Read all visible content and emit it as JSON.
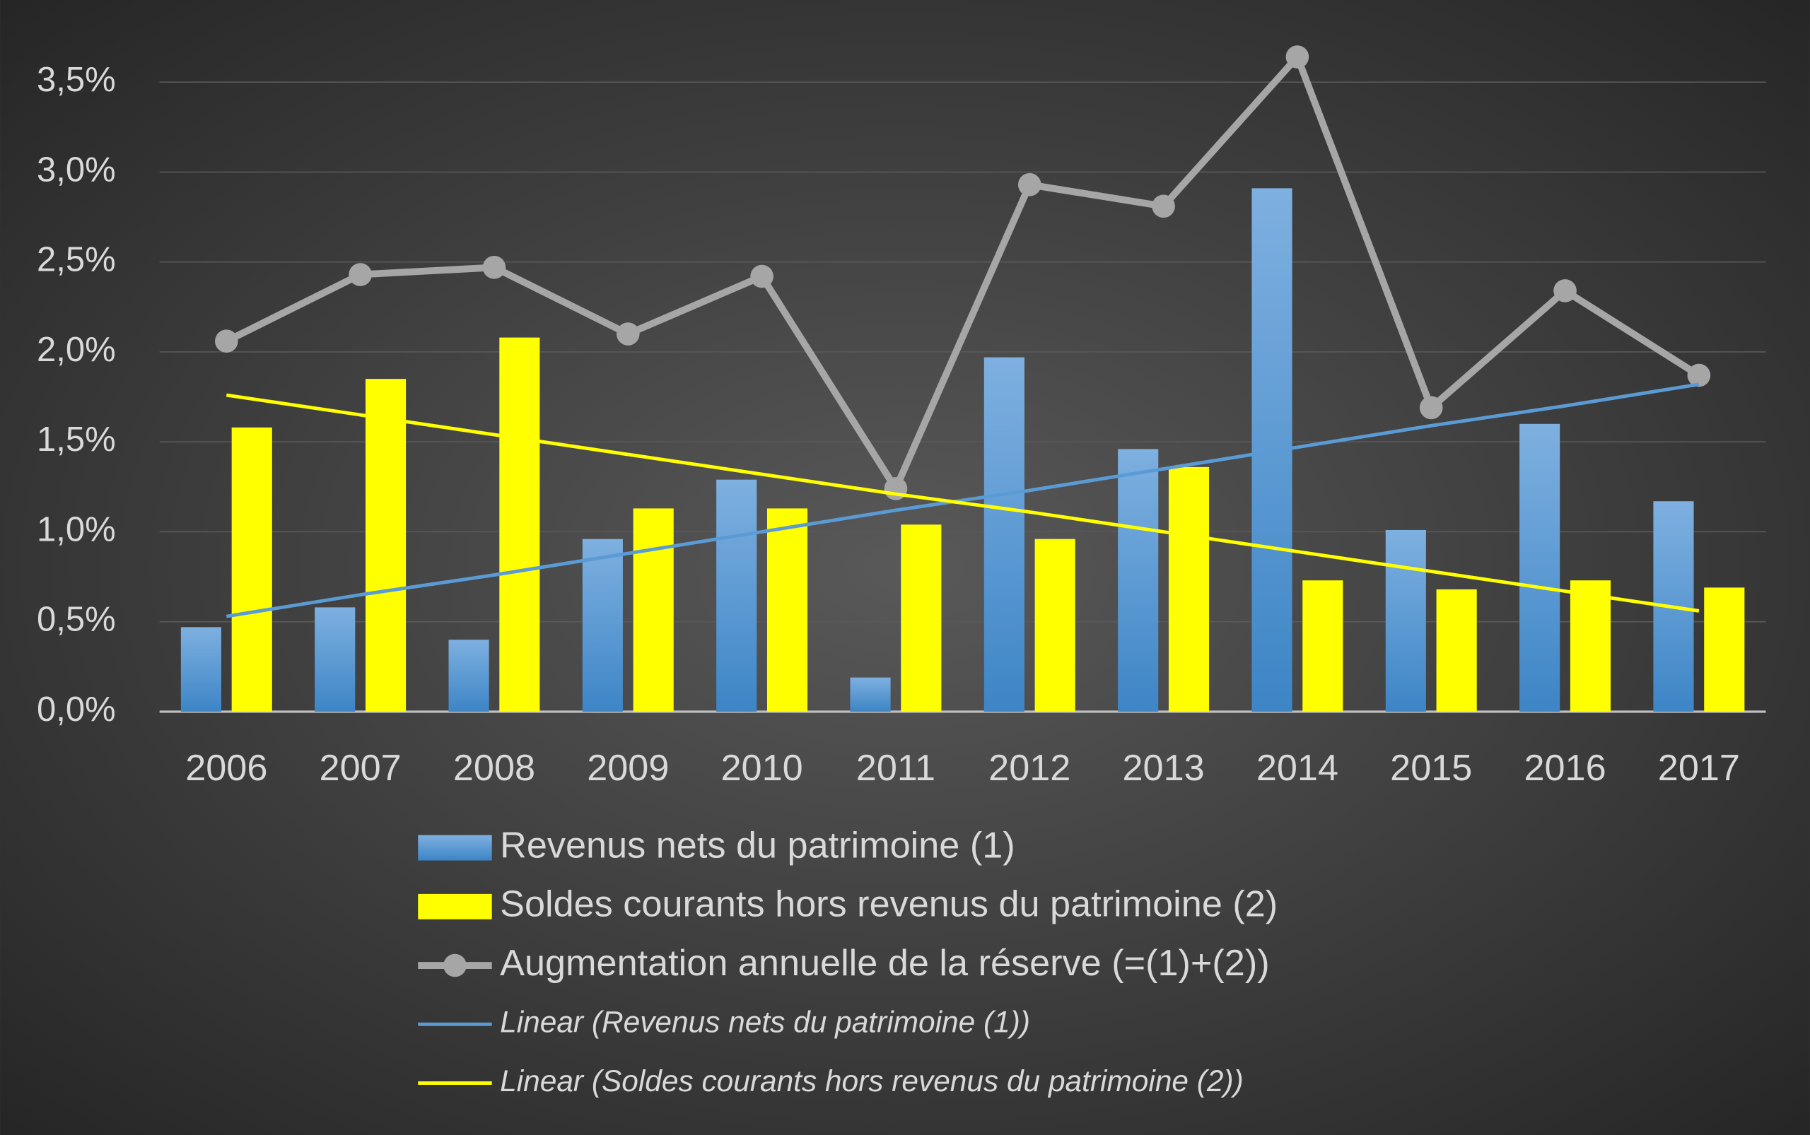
{
  "chart_data": {
    "type": "bar",
    "categories": [
      "2006",
      "2007",
      "2008",
      "2009",
      "2010",
      "2011",
      "2012",
      "2013",
      "2014",
      "2015",
      "2016",
      "2017"
    ],
    "series": [
      {
        "name": "Revenus nets du patrimoine (1)",
        "type": "bar",
        "color": "#5b9bd5",
        "values": [
          0.47,
          0.58,
          0.4,
          0.96,
          1.29,
          0.19,
          1.97,
          1.46,
          2.91,
          1.01,
          1.6,
          1.17
        ]
      },
      {
        "name": "Soldes courants hors revenus du patrimoine (2)",
        "type": "bar",
        "color": "#ffff00",
        "values": [
          1.58,
          1.85,
          2.08,
          1.13,
          1.13,
          1.04,
          0.96,
          1.36,
          0.73,
          0.68,
          0.73,
          0.69
        ]
      },
      {
        "name": "Augmentation annuelle de la réserve (=(1)+(2))",
        "type": "line",
        "color": "#a6a6a6",
        "values": [
          2.06,
          2.43,
          2.47,
          2.1,
          2.42,
          1.24,
          2.93,
          2.81,
          3.64,
          1.69,
          2.34,
          1.87
        ]
      },
      {
        "name": "Linear (Revenus nets du patrimoine (1))",
        "type": "trend",
        "color": "#5b9bd5",
        "values": [
          0.53,
          0.65,
          0.76,
          0.88,
          1.0,
          1.12,
          1.23,
          1.35,
          1.47,
          1.59,
          1.7,
          1.82
        ]
      },
      {
        "name": "Linear (Soldes courants hors revenus du patrimoine (2))",
        "type": "trend",
        "color": "#ffff00",
        "values": [
          1.76,
          1.65,
          1.54,
          1.43,
          1.32,
          1.21,
          1.11,
          1.0,
          0.89,
          0.78,
          0.67,
          0.56
        ]
      }
    ],
    "ylim": [
      0,
      3.7
    ],
    "yticks": [
      {
        "value": 0,
        "label": "0,0%"
      },
      {
        "value": 0.5,
        "label": "0,5%"
      },
      {
        "value": 1,
        "label": "1,0%"
      },
      {
        "value": 1.5,
        "label": "1,5%"
      },
      {
        "value": 2,
        "label": "2,0%"
      },
      {
        "value": 2.5,
        "label": "2,5%"
      },
      {
        "value": 3,
        "label": "3,0%"
      },
      {
        "value": 3.5,
        "label": "3,5%"
      }
    ],
    "grid": true,
    "legend": "bottom"
  }
}
